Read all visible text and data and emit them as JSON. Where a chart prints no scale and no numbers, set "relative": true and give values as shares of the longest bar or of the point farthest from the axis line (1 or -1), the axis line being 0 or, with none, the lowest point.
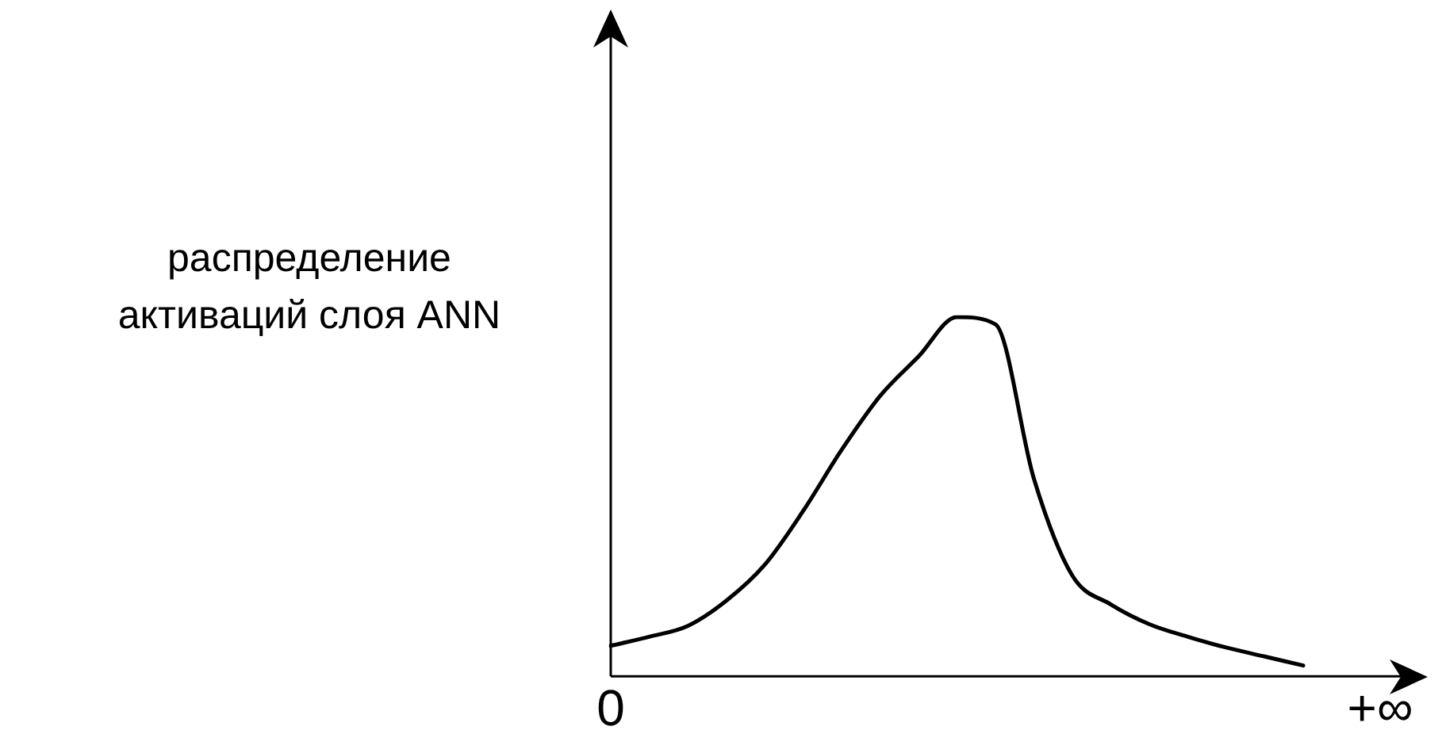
{
  "chart_data": {
    "type": "line",
    "ylabel": "распределение\nактиваций слоя ANN",
    "relative": true,
    "categories": [
      "0",
      null,
      null,
      null,
      null,
      null,
      null,
      null,
      null,
      null,
      null,
      null,
      null,
      null,
      null,
      null,
      null,
      null,
      null,
      null,
      "+∞"
    ],
    "series": [
      {
        "color": "#000000",
        "values": [
          0.085,
          0.11,
          0.14,
          0.21,
          0.31,
          0.46,
          0.63,
          0.78,
          0.89,
          1,
          0.98,
          0.55,
          0.28,
          0.2,
          0.145,
          0.11,
          0.08,
          0.055,
          0.03,
          null,
          null
        ]
      }
    ],
    "grid": false,
    "legend": false,
    "marker": "none",
    "line_style": "solid"
  }
}
